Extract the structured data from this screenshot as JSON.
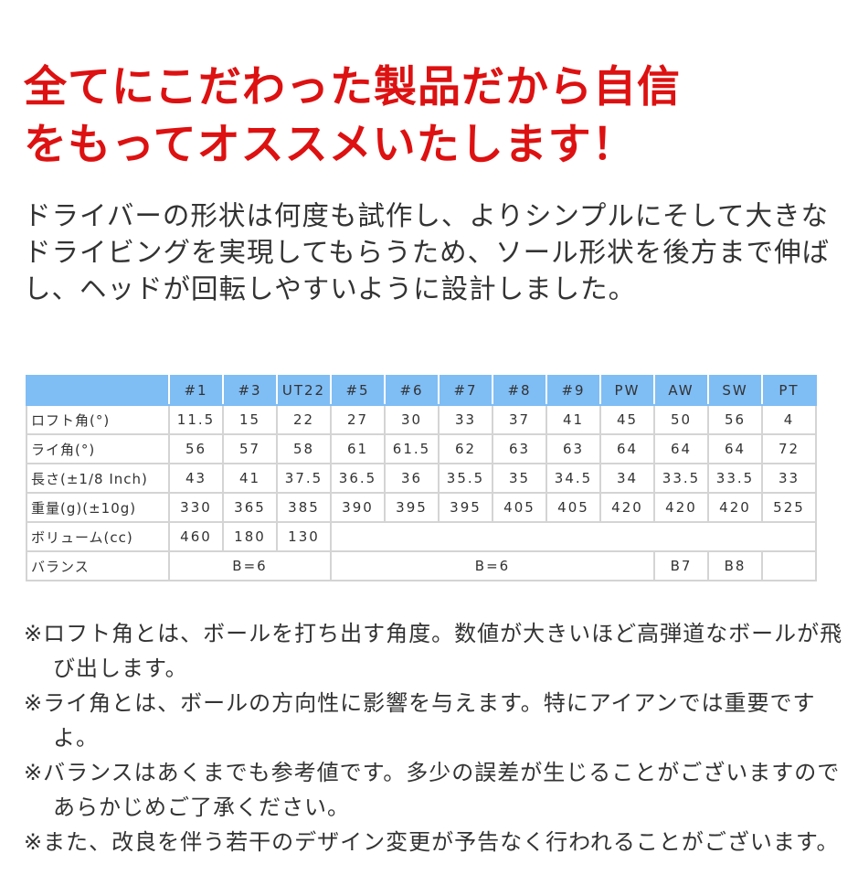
{
  "title": [
    "全てにこだわった製品だから自信",
    "をもってオススメいたします！"
  ],
  "intro": "ドライバーの形状は何度も試作し、よりシンプルにそして大きなドライビングを実現してもらうため、ソール形状を後方まで伸ばし、ヘッドが回転しやすいように設計しました。",
  "spec_table": {
    "header_color": "#7fbdf5",
    "columns": [
      "#1",
      "#3",
      "UT22",
      "#5",
      "#6",
      "#7",
      "#8",
      "#9",
      "PW",
      "AW",
      "SW",
      "PT"
    ],
    "rows": [
      {
        "label": "ロフト角(°)",
        "values": [
          "11.5",
          "15",
          "22",
          "27",
          "30",
          "33",
          "37",
          "41",
          "45",
          "50",
          "56",
          "4"
        ]
      },
      {
        "label": "ライ角(°)",
        "values": [
          "56",
          "57",
          "58",
          "61",
          "61.5",
          "62",
          "63",
          "63",
          "64",
          "64",
          "64",
          "72"
        ]
      },
      {
        "label": "長さ(±1/8 Inch)",
        "values": [
          "43",
          "41",
          "37.5",
          "36.5",
          "36",
          "35.5",
          "35",
          "34.5",
          "34",
          "33.5",
          "33.5",
          "33"
        ]
      },
      {
        "label": "重量(g)(±10g)",
        "values": [
          "330",
          "365",
          "385",
          "390",
          "395",
          "395",
          "405",
          "405",
          "420",
          "420",
          "420",
          "525"
        ]
      },
      {
        "label": "ボリューム(cc)",
        "values": [
          "460",
          "180",
          "130"
        ]
      },
      {
        "label": "バランス",
        "values": [
          "B=6",
          "B=6",
          "B7",
          "B8",
          ""
        ]
      }
    ]
  },
  "notes": [
    "※ロフト角とは、ボールを打ち出す角度。数値が大きいほど高弾道なボールが飛び出します。",
    "※ライ角とは、ボールの方向性に影響を与えます。特にアイアンでは重要ですよ。",
    "※バランスはあくまでも参考値です。多少の誤差が生じることがございますのであらかじめご了承ください。",
    "※また、改良を伴う若干のデザイン変更が予告なく行われることがございます。"
  ],
  "title_color": "#dd1111"
}
